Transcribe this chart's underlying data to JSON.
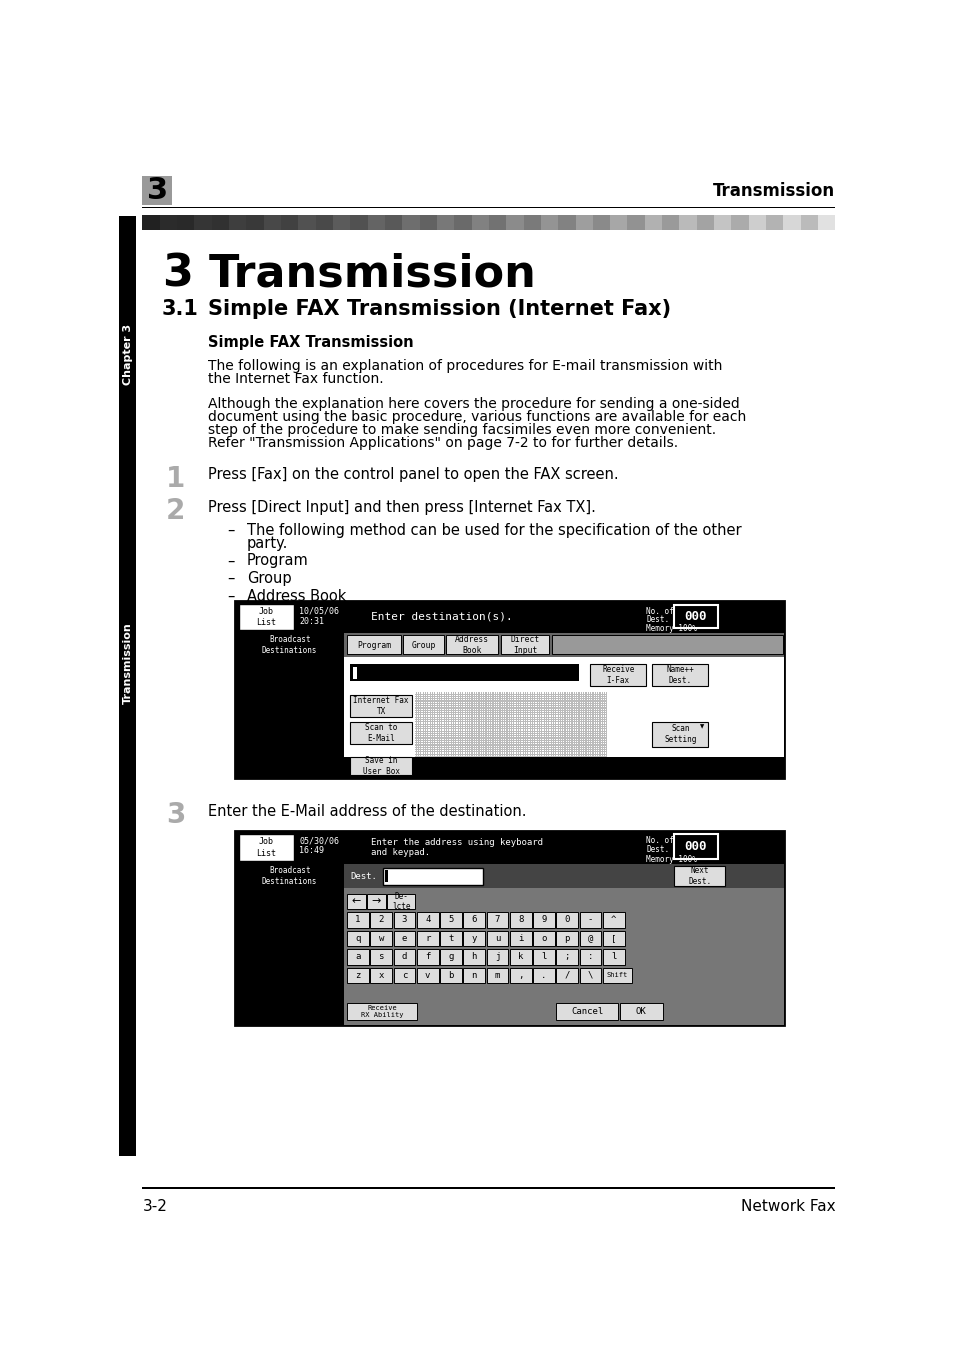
{
  "page_num": "3",
  "header_right": "Transmission",
  "section_num": "3.1",
  "section_title": "Simple FAX Transmission (Internet Fax)",
  "subsection_bold": "Simple FAX Transmission",
  "para1_line1": "The following is an explanation of procedures for E-mail transmission with",
  "para1_line2": "the Internet Fax function.",
  "para2_line1": "Although the explanation here covers the procedure for sending a one-sided",
  "para2_line2": "document using the basic procedure, various functions are available for each",
  "para2_line3": "step of the procedure to make sending facsimiles even more convenient.",
  "para2_line4": "Refer \"Transmission Applications\" on page 7-2 to for further details.",
  "step1_text": "Press [Fax] on the control panel to open the FAX screen.",
  "step2_text": "Press [Direct Input] and then press [Internet Fax TX].",
  "bullet1a": "The following method can be used for the specification of the other",
  "bullet1b": "party.",
  "bullet2": "Program",
  "bullet3": "Group",
  "bullet4": "Address Book",
  "step3_text": "Enter the E-Mail address of the destination.",
  "footer_left": "3-2",
  "footer_right": "Network Fax",
  "bg": "#ffffff",
  "black": "#000000",
  "dgray": "#333333",
  "mgray": "#888888",
  "lgray": "#cccccc",
  "sc1_date": "10/05/06",
  "sc1_time": "20:31",
  "sc1_msg": "Enter destination(s).",
  "sc2_date": "05/30/06",
  "sc2_time": "16:49",
  "sc2_msg1": "Enter the address using keyboard",
  "sc2_msg2": "and keypad."
}
